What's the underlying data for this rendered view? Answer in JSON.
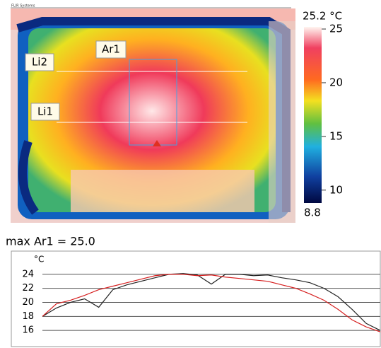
{
  "header": {
    "brand": "FLIR Systems"
  },
  "thermal_image": {
    "labels": [
      "Ar1",
      "Li2",
      "Li1"
    ],
    "scale_max": {
      "value": 25.2,
      "label": "25.2 °C"
    },
    "scale_min": 8.8,
    "scale_ticks": [
      25,
      20,
      15,
      10
    ]
  },
  "measurement": "max Ar1 = 25.0",
  "chart_data": {
    "type": "line",
    "y_label": "°C",
    "ylim": [
      13.7,
      27.3
    ],
    "yticks": [
      16,
      18,
      20,
      22,
      24
    ],
    "grid": true,
    "series": [
      {
        "color": "#222222",
        "values": [
          18.0,
          19.2,
          20.0,
          20.5,
          19.3,
          21.8,
          22.5,
          23.0,
          23.5,
          24.0,
          24.1,
          23.9,
          22.6,
          24.0,
          24.0,
          23.8,
          23.9,
          23.5,
          23.2,
          22.8,
          22.0,
          20.8,
          19.0,
          17.0,
          16.0
        ]
      },
      {
        "color": "#d62020",
        "values": [
          18.0,
          19.8,
          20.3,
          21.0,
          21.8,
          22.3,
          22.8,
          23.3,
          23.8,
          24.0,
          24.0,
          23.8,
          23.9,
          23.6,
          23.4,
          23.2,
          23.0,
          22.5,
          22.0,
          21.2,
          20.3,
          19.0,
          17.5,
          16.5,
          15.8
        ]
      }
    ]
  }
}
